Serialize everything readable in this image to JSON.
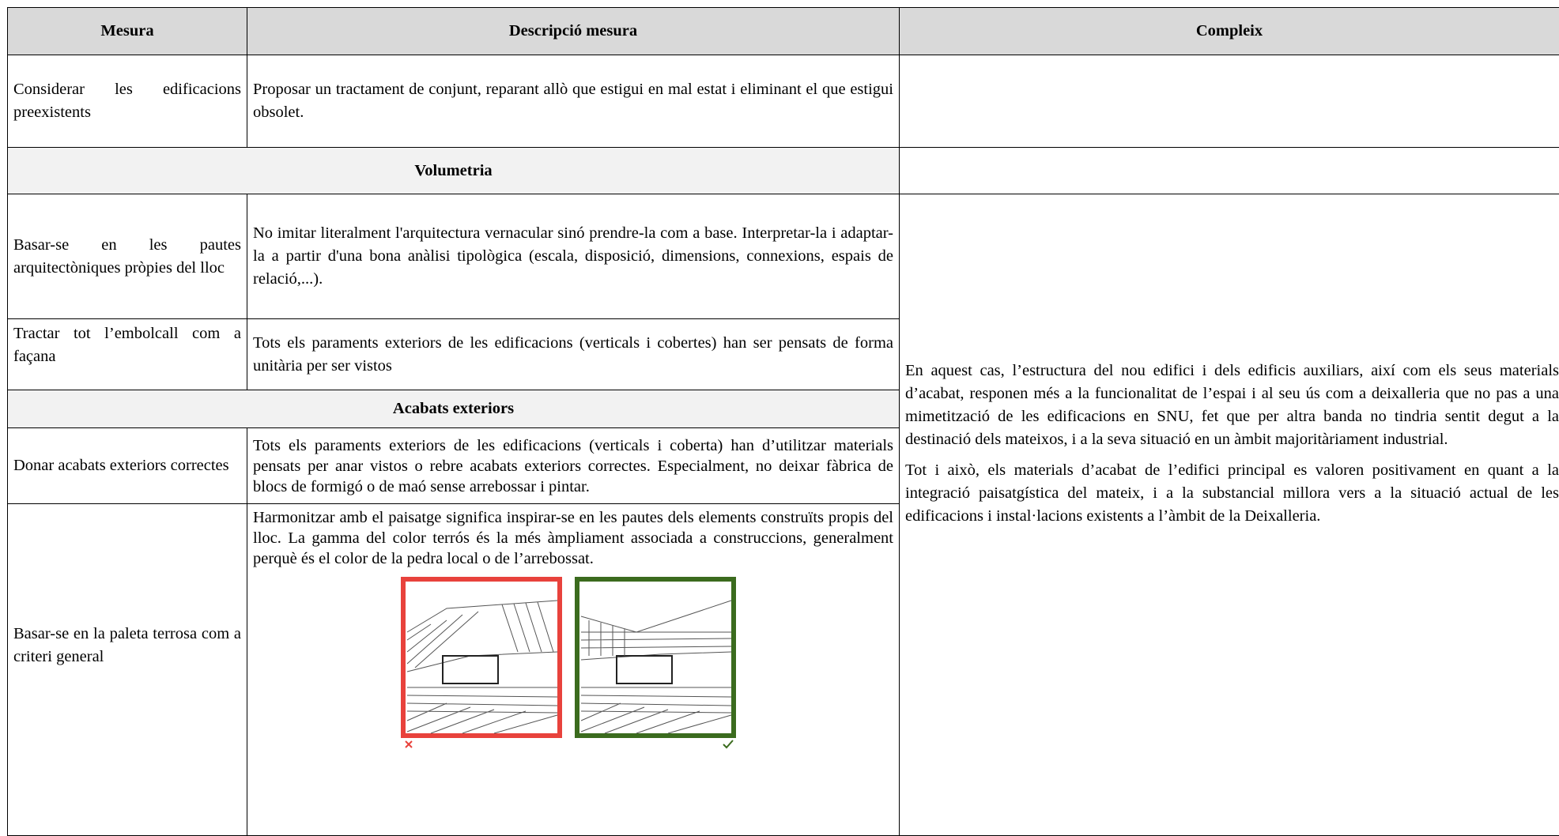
{
  "table": {
    "header": [
      "Mesura",
      "Descripció mesura",
      "Compleix"
    ],
    "rows": [
      {
        "mesura": "Considerar les edificacions preexistents",
        "descripcio": "Proposar un tractament de conjunt, reparant allò que estigui en mal estat i eliminant el que estigui obsolet."
      },
      {
        "section": "Volumetria"
      },
      {
        "mesura": "Basar-se en les pautes arquitectòniques pròpies del lloc",
        "descripcio": "No imitar literalment l'arquitectura vernacular sinó prendre-la com a base. Interpretar-la i adaptar-la a partir d'una bona anàlisi tipològica (escala, disposició, dimensions, connexions, espais de relació,...)."
      },
      {
        "mesura": "Tractar tot l’embolcall com a façana",
        "descripcio": "Tots els paraments exteriors de les edificacions (verticals i cobertes) han ser pensats de forma unitària per ser vistos"
      },
      {
        "section": "Acabats exteriors"
      },
      {
        "mesura": "Donar acabats exteriors correctes",
        "descripcio": "Tots els paraments exteriors de les edificacions (verticals i coberta) han d’utilitzar materials pensats per anar vistos o rebre acabats exteriors correctes. Especialment, no deixar fàbrica de blocs de formigó o de maó sense arrebossar i pintar."
      },
      {
        "mesura": "Basar-se en la paleta terrosa com a criteri general",
        "descripcio": "Harmonitzar amb el paisatge significa inspirar-se en les pautes dels elements construïts propis del lloc. La gamma del color terrós és la més àmpliament associada a construccions, generalment perquè és el color de la pedra local o de l’arrebossat."
      }
    ],
    "compleix": [
      "En aquest cas, l’estructura del nou edifici i dels edificis auxiliars, així com els seus materials d’acabat, responen més a la funcionalitat de l’espai i al seu ús com a deixalleria que no pas a una mimetització de les edificacions en SNU, fet que per altra banda no tindria sentit degut a la destinació dels mateixos, i a la seva situació en un àmbit majoritàriament industrial.",
      "Tot i això, els materials d’acabat de l’edifici principal es valoren positivament en quant a la integració paisatgística del mateix, i a la substancial millora vers a la situació actual de les edificacions i instal·lacions existents a l’àmbit de la Deixalleria."
    ]
  }
}
